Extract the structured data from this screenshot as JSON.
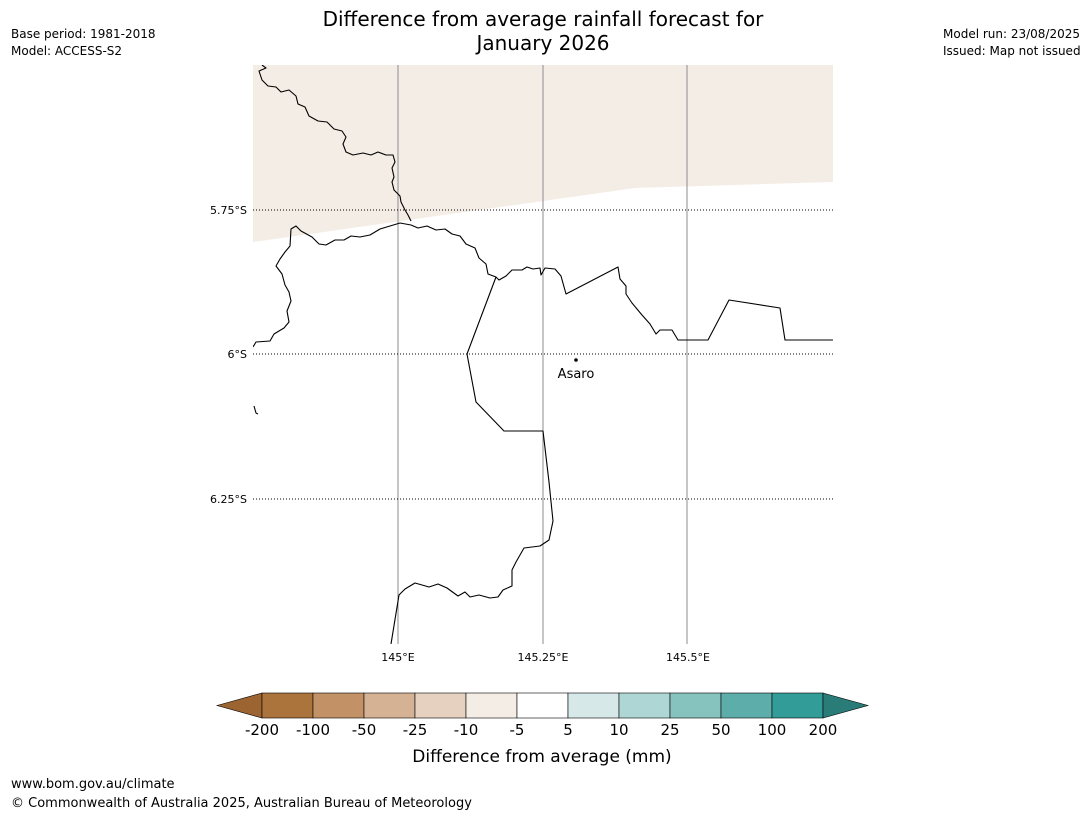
{
  "header": {
    "title_line1": "Difference from average rainfall forecast for",
    "title_line2": "January 2026",
    "base_period": "Base period: 1981-2018",
    "model": "Model: ACCESS-S2",
    "model_run": "Model run: 23/08/2025",
    "issued": "Issued: Map not issued"
  },
  "map": {
    "place_label": "Asaro",
    "lat_labels": [
      "5.75°S",
      "6°S",
      "6.25°S"
    ],
    "lon_labels": [
      "145°E",
      "145.25°E",
      "145.5°E"
    ],
    "shading_color": "#f4ede6",
    "border_color": "#000000",
    "meridian_color": "#8c8c8c"
  },
  "legend": {
    "title": "Difference from average (mm)",
    "tick_labels": [
      "-200",
      "-100",
      "-50",
      "-25",
      "-10",
      "-5",
      "5",
      "10",
      "25",
      "50",
      "100",
      "200"
    ],
    "colors": [
      "#9c6431",
      "#ac743d",
      "#c29266",
      "#d5b293",
      "#e6d1c0",
      "#f4ede6",
      "#ffffff",
      "#d6e8e8",
      "#aed6d5",
      "#86c2be",
      "#5daeab",
      "#329c98",
      "#2a7c78"
    ]
  },
  "footer": {
    "url": "www.bom.gov.au/climate",
    "copyright": "© Commonwealth of Australia 2025, Australian Bureau of Meteorology"
  }
}
